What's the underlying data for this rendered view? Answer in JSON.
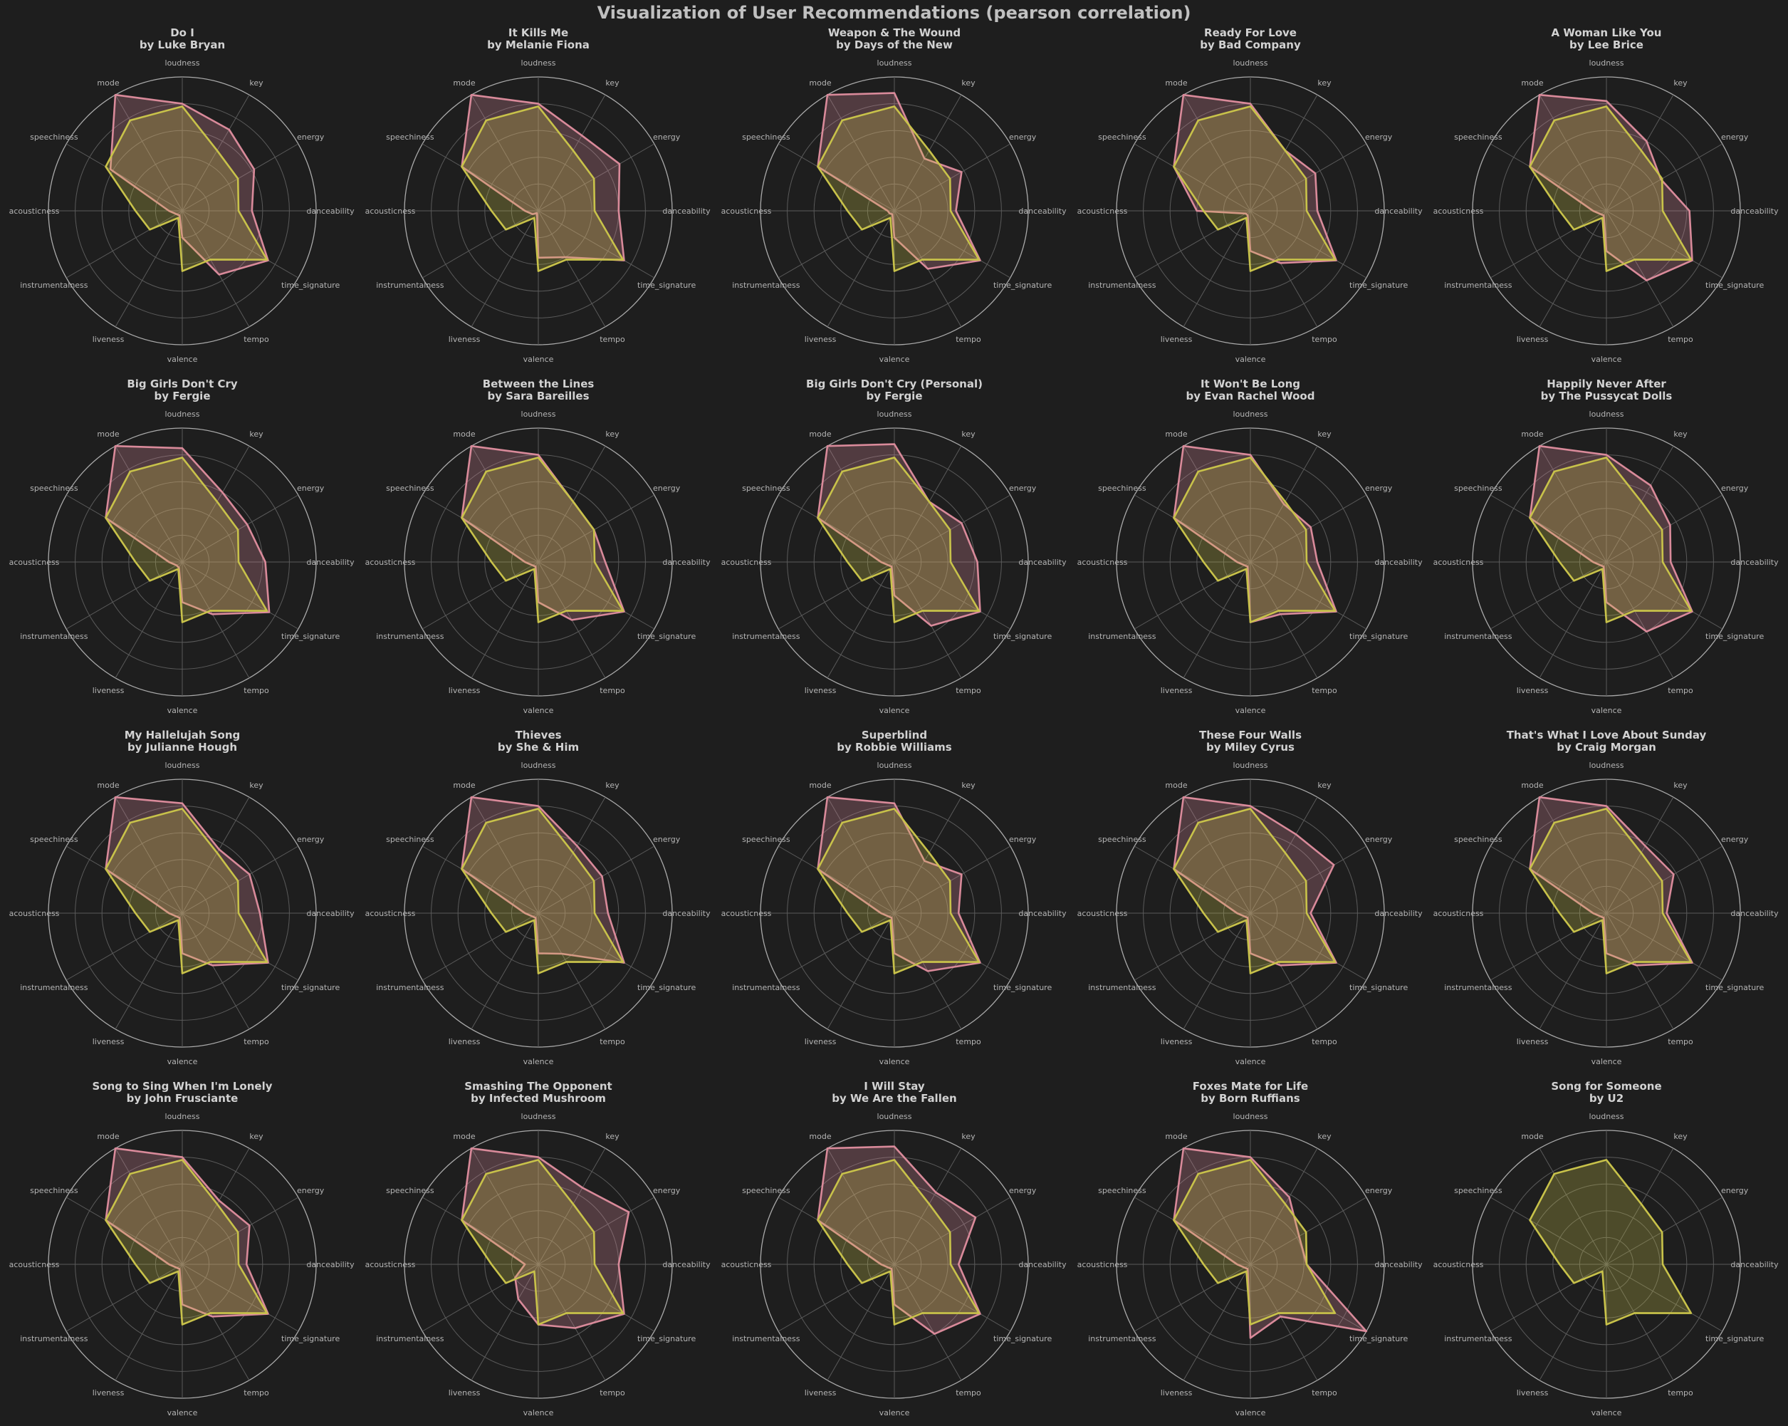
{
  "figure": {
    "title": "Visualization of User Recommendations (pearson correlation)",
    "background": "#1e1e1e",
    "colors": {
      "song": "#d98a9a",
      "user_profile": "#c8c24a",
      "grid": "#5a5a5a",
      "outer_ring": "#aaaaaa"
    }
  },
  "chart_data": {
    "type": "radar",
    "layout": {
      "rows": 4,
      "cols": 5
    },
    "axes": [
      "loudness",
      "key",
      "energy",
      "danceability",
      "time_signature",
      "tempo",
      "valence",
      "liveness",
      "instrumentalness",
      "acousticness",
      "speechiness",
      "mode"
    ],
    "rlim": [
      0,
      1
    ],
    "grid": true,
    "user_profile": [
      0.78,
      0.52,
      0.48,
      0.42,
      0.73,
      0.42,
      0.45,
      0.06,
      0.28,
      0.35,
      0.66,
      0.78
    ],
    "charts": [
      {
        "title": "Do I",
        "artist": "by Luke Bryan",
        "values": [
          0.8,
          0.7,
          0.62,
          0.52,
          0.74,
          0.55,
          0.2,
          0.04,
          0.05,
          0.1,
          0.62,
          1.0
        ]
      },
      {
        "title": "It Kills Me",
        "artist": "by Melanie Fiona",
        "values": [
          0.8,
          0.65,
          0.7,
          0.6,
          0.74,
          0.4,
          0.35,
          0.02,
          0.05,
          0.1,
          0.66,
          1.0
        ]
      },
      {
        "title": "Weapon & The Wound",
        "artist": "by Days of the New",
        "values": [
          0.88,
          0.45,
          0.58,
          0.46,
          0.74,
          0.5,
          0.2,
          0.03,
          0.04,
          0.05,
          0.66,
          1.0
        ]
      },
      {
        "title": "Ready For Love",
        "artist": "by Bad Company",
        "values": [
          0.8,
          0.52,
          0.56,
          0.5,
          0.74,
          0.45,
          0.3,
          0.04,
          0.04,
          0.4,
          0.66,
          1.0
        ]
      },
      {
        "title": "A Woman Like You",
        "artist": "by Lee Brice",
        "values": [
          0.82,
          0.6,
          0.47,
          0.62,
          0.74,
          0.6,
          0.3,
          0.04,
          0.05,
          0.1,
          0.66,
          1.0
        ]
      },
      {
        "title": "Big Girls Don't Cry",
        "artist": "by Fergie",
        "values": [
          0.85,
          0.6,
          0.56,
          0.62,
          0.75,
          0.45,
          0.3,
          0.05,
          0.05,
          0.1,
          0.66,
          1.0
        ]
      },
      {
        "title": "Between the Lines",
        "artist": "by Sara Bareilles",
        "values": [
          0.8,
          0.52,
          0.48,
          0.5,
          0.74,
          0.5,
          0.3,
          0.04,
          0.05,
          0.1,
          0.66,
          1.0
        ]
      },
      {
        "title": "Big Girls Don't Cry (Personal)",
        "artist": "by Fergie",
        "values": [
          0.88,
          0.52,
          0.58,
          0.62,
          0.74,
          0.55,
          0.25,
          0.04,
          0.05,
          0.1,
          0.66,
          1.0
        ]
      },
      {
        "title": "It Won't Be Long",
        "artist": "by Evan Rachel Wood",
        "values": [
          0.8,
          0.5,
          0.52,
          0.5,
          0.74,
          0.45,
          0.45,
          0.04,
          0.05,
          0.1,
          0.66,
          1.0
        ]
      },
      {
        "title": "Happily Never After",
        "artist": "by The Pussycat Dolls",
        "values": [
          0.8,
          0.66,
          0.55,
          0.48,
          0.74,
          0.6,
          0.3,
          0.04,
          0.05,
          0.1,
          0.66,
          1.0
        ]
      },
      {
        "title": "My Hallelujah Song",
        "artist": "by Julianne Hough",
        "values": [
          0.82,
          0.55,
          0.58,
          0.58,
          0.74,
          0.45,
          0.3,
          0.04,
          0.05,
          0.1,
          0.66,
          1.0
        ]
      },
      {
        "title": "Thieves",
        "artist": "by She & Him",
        "values": [
          0.8,
          0.58,
          0.55,
          0.52,
          0.74,
          0.35,
          0.3,
          0.04,
          0.05,
          0.1,
          0.66,
          1.0
        ]
      },
      {
        "title": "Superblind",
        "artist": "by Robbie Williams",
        "values": [
          0.82,
          0.45,
          0.58,
          0.48,
          0.74,
          0.5,
          0.3,
          0.04,
          0.05,
          0.1,
          0.66,
          1.0
        ]
      },
      {
        "title": "These Four Walls",
        "artist": "by Miley Cyrus",
        "values": [
          0.8,
          0.68,
          0.72,
          0.45,
          0.74,
          0.45,
          0.3,
          0.04,
          0.05,
          0.1,
          0.66,
          1.0
        ]
      },
      {
        "title": "That's What I Love About Sunday",
        "artist": "by Craig Morgan",
        "values": [
          0.8,
          0.58,
          0.58,
          0.45,
          0.74,
          0.45,
          0.3,
          0.04,
          0.05,
          0.1,
          0.66,
          1.0
        ]
      },
      {
        "title": "Song to Sing When I'm Lonely",
        "artist": "by John Frusciante",
        "values": [
          0.8,
          0.55,
          0.58,
          0.48,
          0.74,
          0.45,
          0.3,
          0.04,
          0.05,
          0.1,
          0.66,
          1.0
        ]
      },
      {
        "title": "Smashing The Opponent",
        "artist": "by Infected Mushroom",
        "values": [
          0.8,
          0.66,
          0.78,
          0.6,
          0.74,
          0.55,
          0.45,
          0.3,
          0.2,
          0.1,
          0.66,
          1.0
        ]
      },
      {
        "title": "I Will Stay",
        "artist": "by We Are the Fallen",
        "values": [
          0.88,
          0.62,
          0.7,
          0.48,
          0.74,
          0.6,
          0.3,
          0.04,
          0.05,
          0.1,
          0.66,
          1.0
        ]
      },
      {
        "title": "Foxes Mate for Life",
        "artist": "by Born Ruffians",
        "values": [
          0.8,
          0.58,
          0.42,
          0.42,
          1.0,
          0.45,
          0.55,
          0.04,
          0.05,
          0.1,
          0.66,
          1.0
        ]
      },
      {
        "title": "Song for Someone",
        "artist": "by U2",
        "values": null
      }
    ]
  }
}
